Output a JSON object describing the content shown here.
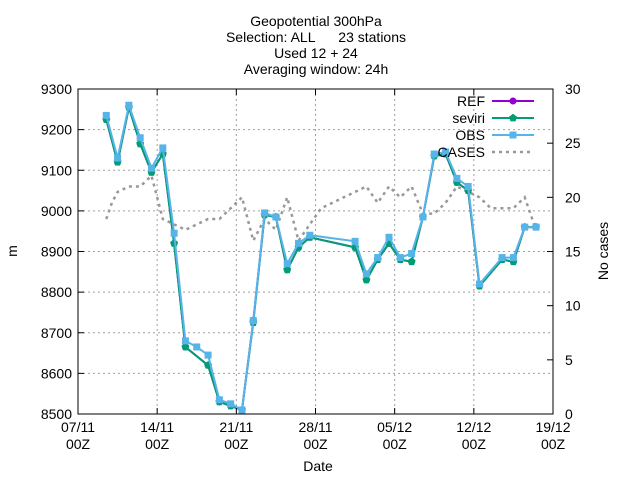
{
  "chart_data": {
    "type": "line",
    "title_lines": [
      "Geopotential 300hPa",
      "Selection: ALL      23 stations",
      "Used 12 + 24",
      "Averaging window: 24h"
    ],
    "xlabel": "Date",
    "ylabel": "m",
    "y2label": "No cases",
    "xlim": [
      "2016-11-07",
      "2016-12-19"
    ],
    "ylim": [
      8500,
      9300
    ],
    "y2lim": [
      0,
      30
    ],
    "xticks": [
      {
        "line1": "07/11",
        "line2": "00Z",
        "date": "2016-11-07"
      },
      {
        "line1": "14/11",
        "line2": "00Z",
        "date": "2016-11-14"
      },
      {
        "line1": "21/11",
        "line2": "00Z",
        "date": "2016-11-21"
      },
      {
        "line1": "28/11",
        "line2": "00Z",
        "date": "2016-11-28"
      },
      {
        "line1": "05/12",
        "line2": "00Z",
        "date": "2016-12-05"
      },
      {
        "line1": "12/12",
        "line2": "00Z",
        "date": "2016-12-12"
      },
      {
        "line1": "19/12",
        "line2": "00Z",
        "date": "2016-12-19"
      }
    ],
    "yticks": [
      "8500",
      "8600",
      "8700",
      "8800",
      "8900",
      "9000",
      "9100",
      "9200",
      "9300"
    ],
    "y2ticks": [
      "0",
      "5",
      "10",
      "15",
      "20",
      "25",
      "30"
    ],
    "grid": true,
    "legend_position": "top-right",
    "series": [
      {
        "name": "REF",
        "axis": "left",
        "color": "#9400d3",
        "marker": "circle",
        "dash": "solid",
        "x": [
          "2016-11-09 12:00",
          "2016-11-10 12:00",
          "2016-11-11 12:00",
          "2016-11-12 12:00",
          "2016-11-13 12:00",
          "2016-11-14 12:00",
          "2016-11-15 12:00",
          "2016-11-16 12:00",
          "2016-11-18 12:00",
          "2016-11-19 12:00",
          "2016-11-20 12:00",
          "2016-11-21 12:00",
          "2016-11-22 12:00",
          "2016-11-23 12:00",
          "2016-11-24 12:00",
          "2016-11-25 12:00",
          "2016-11-26 12:00",
          "2016-11-27 12:00",
          "2016-12-01 12:00",
          "2016-12-02 12:00",
          "2016-12-03 12:00",
          "2016-12-04 12:00",
          "2016-12-05 12:00",
          "2016-12-06 12:00",
          "2016-12-07 12:00",
          "2016-12-08 12:00",
          "2016-12-09 12:00",
          "2016-12-10 12:00",
          "2016-12-11 12:00",
          "2016-12-12 12:00",
          "2016-12-14 12:00",
          "2016-12-15 12:00",
          "2016-12-16 12:00",
          "2016-12-17 12:00"
        ],
        "values": [
          9225,
          9120,
          9255,
          9165,
          9095,
          9140,
          8920,
          8665,
          8620,
          8530,
          8520,
          8510,
          8730,
          8990,
          8985,
          8855,
          8910,
          8935,
          8910,
          8830,
          8880,
          8920,
          8880,
          8875,
          8985,
          9135,
          9140,
          9070,
          9050,
          8815,
          8880,
          8875,
          8960,
          8960
        ]
      },
      {
        "name": "seviri",
        "axis": "left",
        "color": "#009e73",
        "marker": "pentagon",
        "dash": "solid",
        "x": [
          "2016-11-09 12:00",
          "2016-11-10 12:00",
          "2016-11-11 12:00",
          "2016-11-12 12:00",
          "2016-11-13 12:00",
          "2016-11-14 12:00",
          "2016-11-15 12:00",
          "2016-11-16 12:00",
          "2016-11-18 12:00",
          "2016-11-19 12:00",
          "2016-11-20 12:00",
          "2016-11-21 12:00",
          "2016-11-22 12:00",
          "2016-11-23 12:00",
          "2016-11-24 12:00",
          "2016-11-25 12:00",
          "2016-11-26 12:00",
          "2016-11-27 12:00",
          "2016-12-01 12:00",
          "2016-12-02 12:00",
          "2016-12-03 12:00",
          "2016-12-04 12:00",
          "2016-12-05 12:00",
          "2016-12-06 12:00",
          "2016-12-07 12:00",
          "2016-12-08 12:00",
          "2016-12-09 12:00",
          "2016-12-10 12:00",
          "2016-12-11 12:00",
          "2016-12-12 12:00",
          "2016-12-14 12:00",
          "2016-12-15 12:00",
          "2016-12-16 12:00",
          "2016-12-17 12:00"
        ],
        "values": [
          9225,
          9120,
          9255,
          9165,
          9095,
          9140,
          8920,
          8665,
          8620,
          8530,
          8520,
          8510,
          8725,
          8990,
          8985,
          8855,
          8910,
          8935,
          8910,
          8830,
          8880,
          8920,
          8880,
          8875,
          8985,
          9135,
          9140,
          9070,
          9050,
          8815,
          8880,
          8875,
          8960,
          8960
        ]
      },
      {
        "name": "OBS",
        "axis": "left",
        "color": "#56b4e9",
        "marker": "square",
        "dash": "solid",
        "x": [
          "2016-11-09 12:00",
          "2016-11-10 12:00",
          "2016-11-11 12:00",
          "2016-11-12 12:00",
          "2016-11-13 12:00",
          "2016-11-14 12:00",
          "2016-11-15 12:00",
          "2016-11-16 12:00",
          "2016-11-17 12:00",
          "2016-11-18 12:00",
          "2016-11-19 12:00",
          "2016-11-20 12:00",
          "2016-11-21 12:00",
          "2016-11-22 12:00",
          "2016-11-23 12:00",
          "2016-11-24 12:00",
          "2016-11-25 12:00",
          "2016-11-26 12:00",
          "2016-11-27 12:00",
          "2016-12-01 12:00",
          "2016-12-02 12:00",
          "2016-12-03 12:00",
          "2016-12-04 12:00",
          "2016-12-05 12:00",
          "2016-12-06 12:00",
          "2016-12-07 12:00",
          "2016-12-08 12:00",
          "2016-12-09 12:00",
          "2016-12-10 12:00",
          "2016-12-11 12:00",
          "2016-12-12 12:00",
          "2016-12-14 12:00",
          "2016-12-15 12:00",
          "2016-12-16 12:00",
          "2016-12-17 12:00"
        ],
        "values": [
          9235,
          9130,
          9260,
          9180,
          9105,
          9155,
          8945,
          8680,
          8665,
          8645,
          8535,
          8525,
          8510,
          8730,
          8995,
          8985,
          8870,
          8920,
          8940,
          8925,
          8845,
          8885,
          8935,
          8885,
          8895,
          8985,
          9140,
          9145,
          9080,
          9060,
          8820,
          8885,
          8885,
          8960,
          8960
        ]
      },
      {
        "name": "CASES",
        "axis": "right",
        "color": "#999999",
        "marker": "none",
        "dash": "dotted",
        "x": [
          "2016-11-09 12:00",
          "2016-11-10 00:00",
          "2016-11-10 12:00",
          "2016-11-11 12:00",
          "2016-11-12 12:00",
          "2016-11-13 12:00",
          "2016-11-14 12:00",
          "2016-11-15 12:00",
          "2016-11-16 12:00",
          "2016-11-17 12:00",
          "2016-11-18 12:00",
          "2016-11-19 12:00",
          "2016-11-20 12:00",
          "2016-11-21 12:00",
          "2016-11-22 12:00",
          "2016-11-23 12:00",
          "2016-11-24 12:00",
          "2016-11-25 12:00",
          "2016-11-26 12:00",
          "2016-11-27 12:00",
          "2016-11-28 12:00",
          "2016-11-29 12:00",
          "2016-11-30 12:00",
          "2016-12-01 12:00",
          "2016-12-02 12:00",
          "2016-12-03 12:00",
          "2016-12-04 12:00",
          "2016-12-05 12:00",
          "2016-12-06 12:00",
          "2016-12-07 12:00",
          "2016-12-08 12:00",
          "2016-12-09 12:00",
          "2016-12-10 12:00",
          "2016-12-11 12:00",
          "2016-12-12 12:00",
          "2016-12-13 12:00",
          "2016-12-14 12:00",
          "2016-12-15 12:00",
          "2016-12-16 12:00",
          "2016-12-17 12:00"
        ],
        "values": [
          18,
          19.5,
          20.5,
          21,
          21,
          22,
          18,
          17.5,
          17,
          17.5,
          18,
          18,
          19,
          20,
          16,
          18,
          17,
          20,
          16,
          17.5,
          19,
          19.5,
          20,
          20.5,
          21,
          19.5,
          21,
          20,
          21,
          18.5,
          18.5,
          19.5,
          21,
          20.5,
          20,
          19,
          19,
          19,
          20,
          17
        ]
      }
    ]
  }
}
